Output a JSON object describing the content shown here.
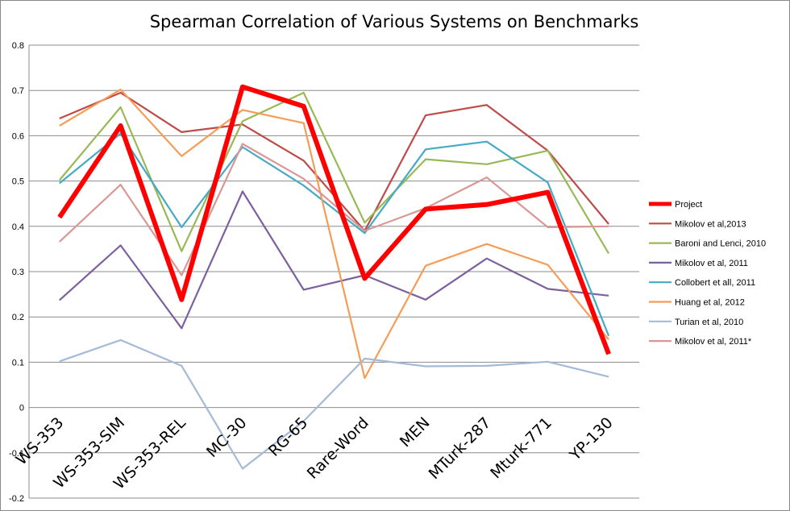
{
  "chart_data": {
    "type": "line",
    "title": "Spearman Correlation of Various Systems on Benchmarks",
    "xlabel": "",
    "ylabel": "",
    "ylim": [
      -0.2,
      0.8
    ],
    "yticks": [
      -0.2,
      -0.1,
      0,
      0.1,
      0.2,
      0.3,
      0.4,
      0.5,
      0.6,
      0.7,
      0.8
    ],
    "ytick_labels": [
      "-0.2",
      "-0.1",
      "0",
      "0.1",
      "0.2",
      "0.3",
      "0.4",
      "0.5",
      "0.6",
      "0.7",
      "0.8"
    ],
    "grid": true,
    "legend_position": "right",
    "categories": [
      "WS-353",
      "WS-353-SIM",
      "WS-353-REL",
      "MC-30",
      "RG-65",
      "Rare-Word",
      "MEN",
      "MTurk-287",
      "Mturk-771",
      "YP-130"
    ],
    "series": [
      {
        "name": "Project",
        "color": "#ff0000",
        "width": 6,
        "values": [
          0.42,
          0.622,
          0.238,
          0.708,
          0.665,
          0.285,
          0.438,
          0.448,
          0.475,
          0.118
        ]
      },
      {
        "name": "Mikolov et al,2013",
        "color": "#be4b48",
        "width": 2.2,
        "values": [
          0.638,
          0.695,
          0.608,
          0.625,
          0.545,
          0.39,
          0.645,
          0.668,
          0.567,
          0.405
        ]
      },
      {
        "name": "Baroni and Lenci, 2010",
        "color": "#98b954",
        "width": 2.2,
        "values": [
          0.502,
          0.663,
          0.345,
          0.632,
          0.695,
          0.408,
          0.548,
          0.537,
          0.567,
          0.34
        ]
      },
      {
        "name": "Mikolov et al, 2011",
        "color": "#7d60a0",
        "width": 2.2,
        "values": [
          0.237,
          0.358,
          0.175,
          0.477,
          0.26,
          0.292,
          0.238,
          0.329,
          0.262,
          0.247
        ]
      },
      {
        "name": "Collobert et all, 2011",
        "color": "#46aac4",
        "width": 2.2,
        "values": [
          0.495,
          0.605,
          0.398,
          0.575,
          0.49,
          0.385,
          0.57,
          0.587,
          0.497,
          0.158
        ]
      },
      {
        "name": "Huang et al, 2012",
        "color": "#f59d56",
        "width": 2.2,
        "values": [
          0.622,
          0.702,
          0.555,
          0.657,
          0.628,
          0.065,
          0.313,
          0.361,
          0.315,
          0.15
        ]
      },
      {
        "name": "Turian et al, 2010",
        "color": "#a5b9d8",
        "width": 2.2,
        "values": [
          0.102,
          0.149,
          0.092,
          -0.135,
          -0.03,
          0.108,
          0.091,
          0.092,
          0.101,
          0.068
        ]
      },
      {
        "name": "Mikolov et al, 2011*",
        "color": "#d99795",
        "width": 2.2,
        "values": [
          0.366,
          0.492,
          0.292,
          0.582,
          0.505,
          0.39,
          0.44,
          0.508,
          0.398,
          0.4
        ]
      }
    ]
  }
}
